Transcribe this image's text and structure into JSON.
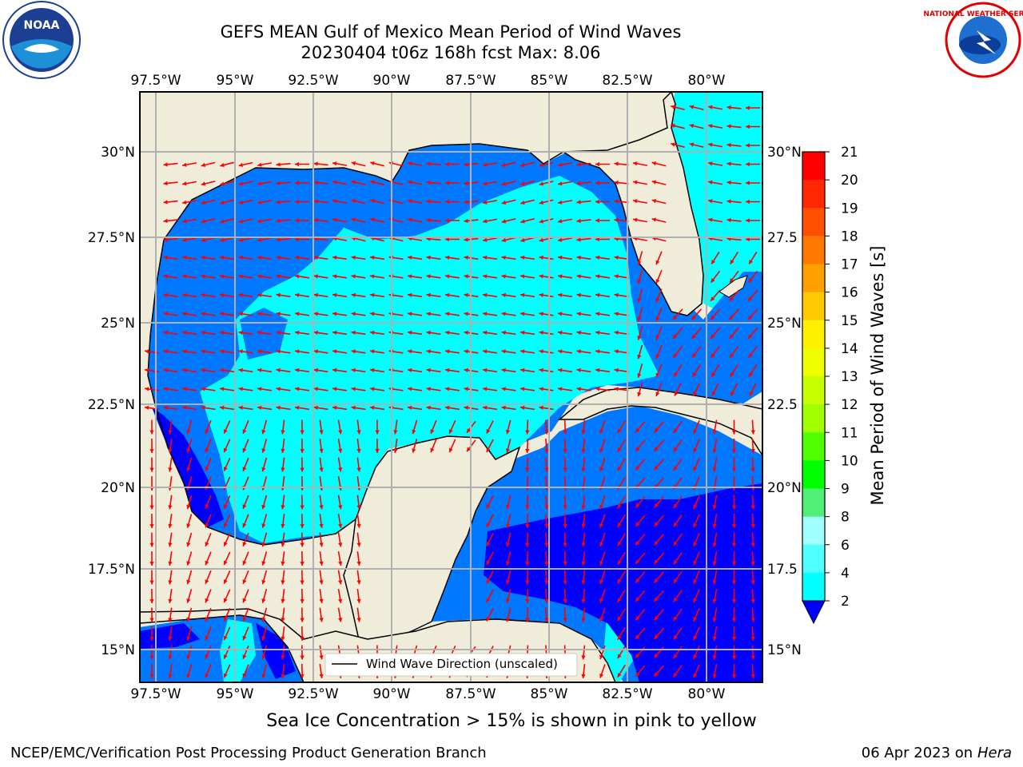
{
  "title": {
    "line1": "GEFS MEAN Gulf of Mexico Mean Period of Wind Waves",
    "line2": "20230404 t06z 168h fcst   Max: 8.06"
  },
  "map": {
    "lon_ticks": [
      "97.5°W",
      "95°W",
      "92.5°W",
      "90°W",
      "87.5°W",
      "85°W",
      "82.5°W",
      "80°W"
    ],
    "lat_ticks_left": [
      "30°N",
      "27.5°N",
      "25°N",
      "22.5°N",
      "20°N",
      "17.5°N",
      "15°N"
    ],
    "lat_ticks_right": [
      "30°N",
      "27.5",
      "25°N",
      "22.5",
      "20°N",
      "17.5",
      "15°N"
    ],
    "legend_label": "Wind Wave Direction (unscaled)",
    "land_color": "#efedd9",
    "arrow_color": "#ff0000"
  },
  "colorbar": {
    "label": "Mean Period of Wind Waves [s]",
    "ticks": [
      "21",
      "20",
      "19",
      "18",
      "17",
      "16",
      "15",
      "14",
      "13",
      "12",
      "11",
      "10",
      "9",
      "8",
      "6",
      "4",
      "2"
    ],
    "colors": [
      "#ff0000",
      "#ff2800",
      "#ff5000",
      "#ff7800",
      "#ffa000",
      "#ffc800",
      "#fff000",
      "#f0ff00",
      "#c8ff00",
      "#a0ff00",
      "#50ff00",
      "#00ff00",
      "#50f078",
      "#a0ffff",
      "#50ffff",
      "#00ffff",
      "#0078ff",
      "#0000ff"
    ]
  },
  "ice_note": "Sea Ice Concentration > 15% is shown in pink to yellow",
  "footer": {
    "left": "NCEP/EMC/Verification Post Processing Product Generation Branch",
    "right_date": "06 Apr 2023 on",
    "right_host": "Hera"
  },
  "logos": {
    "noaa_text": "NOAA",
    "nws_text": "NATIONAL WEATHER SERVICE"
  }
}
